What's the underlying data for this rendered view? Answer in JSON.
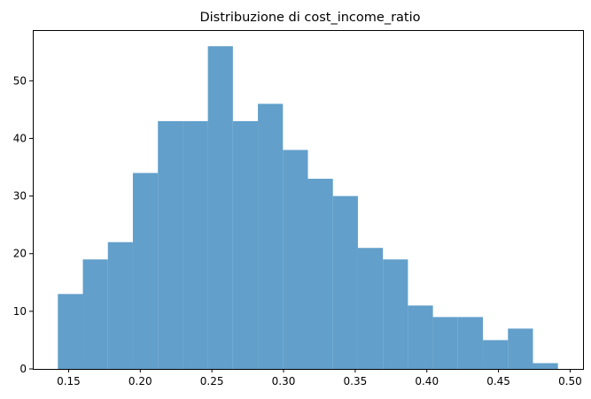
{
  "chart_data": {
    "type": "bar",
    "title": "Distribuzione di cost_income_ratio",
    "xlabel": "",
    "ylabel": "",
    "bin_edges": [
      0.1425,
      0.15995,
      0.1774,
      0.19485,
      0.2123,
      0.22975,
      0.2472,
      0.26465,
      0.2821,
      0.29955,
      0.317,
      0.33445,
      0.3519,
      0.36935,
      0.3868,
      0.40425,
      0.4217,
      0.43915,
      0.4566,
      0.47405,
      0.4915
    ],
    "counts": [
      13,
      19,
      22,
      34,
      43,
      43,
      56,
      43,
      46,
      38,
      33,
      30,
      21,
      19,
      11,
      9,
      9,
      5,
      7,
      1
    ],
    "xlim": [
      0.125,
      0.509
    ],
    "ylim": [
      0,
      58.8
    ],
    "x_ticks": [
      0.15,
      0.2,
      0.25,
      0.3,
      0.35,
      0.4,
      0.45,
      0.5
    ],
    "x_tick_labels": [
      "0.15",
      "0.20",
      "0.25",
      "0.30",
      "0.35",
      "0.40",
      "0.45",
      "0.50"
    ],
    "y_ticks": [
      0,
      10,
      20,
      30,
      40,
      50
    ],
    "y_tick_labels": [
      "0",
      "10",
      "20",
      "30",
      "40",
      "50"
    ],
    "bar_color": "#629fca",
    "grid": false
  }
}
